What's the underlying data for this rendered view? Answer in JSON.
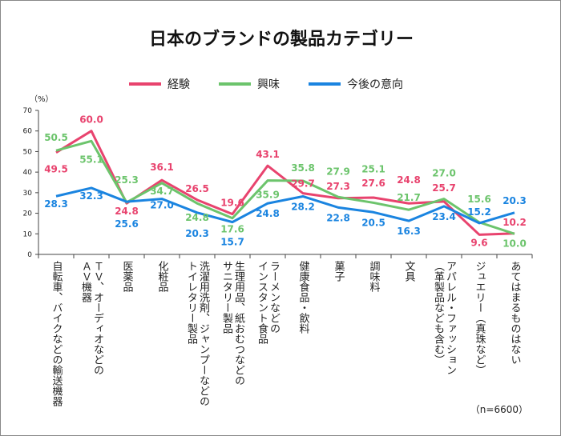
{
  "chart_data": {
    "type": "line",
    "title": "日本のブランドの製品カテゴリー",
    "ylabel": "（%）",
    "ylim": [
      0,
      70
    ],
    "yticks": [
      0,
      10,
      20,
      30,
      40,
      50,
      60,
      70
    ],
    "grid": false,
    "legend": "top",
    "categories": [
      "自転車、バイクなどの輸送機器",
      "ＴＶ、オーディオなどの\nＡＶ機器",
      "医薬品",
      "化粧品",
      "洗濯用洗剤、ジャンプーなどの\nトイレタリー製品",
      "生理用品、紙おむつなどの\nサニタリー製品",
      "ラーメンなどの\nインスタント食品",
      "健康食品・飲料",
      "菓子",
      "調味料",
      "文具",
      "アパレル・ファッション\n（革製品なども含む）",
      "ジュエリー（真珠など）",
      "あてはまるものはない"
    ],
    "series": [
      {
        "name": "経験",
        "color": "#e8436e",
        "values": [
          49.5,
          60.0,
          24.8,
          36.1,
          26.5,
          19.6,
          43.1,
          29.7,
          27.3,
          27.6,
          24.8,
          25.7,
          9.6,
          10.2
        ]
      },
      {
        "name": "興味",
        "color": "#6cc46c",
        "values": [
          50.5,
          55.1,
          25.3,
          34.7,
          24.8,
          17.6,
          35.9,
          35.8,
          27.9,
          25.1,
          21.7,
          27.0,
          15.6,
          10.0
        ]
      },
      {
        "name": "今後の意向",
        "color": "#1a84e0",
        "values": [
          28.3,
          32.3,
          25.6,
          27.0,
          20.3,
          15.7,
          24.8,
          28.2,
          22.8,
          20.5,
          16.3,
          23.4,
          15.2,
          20.3
        ]
      }
    ],
    "note": "（n=6600）"
  }
}
